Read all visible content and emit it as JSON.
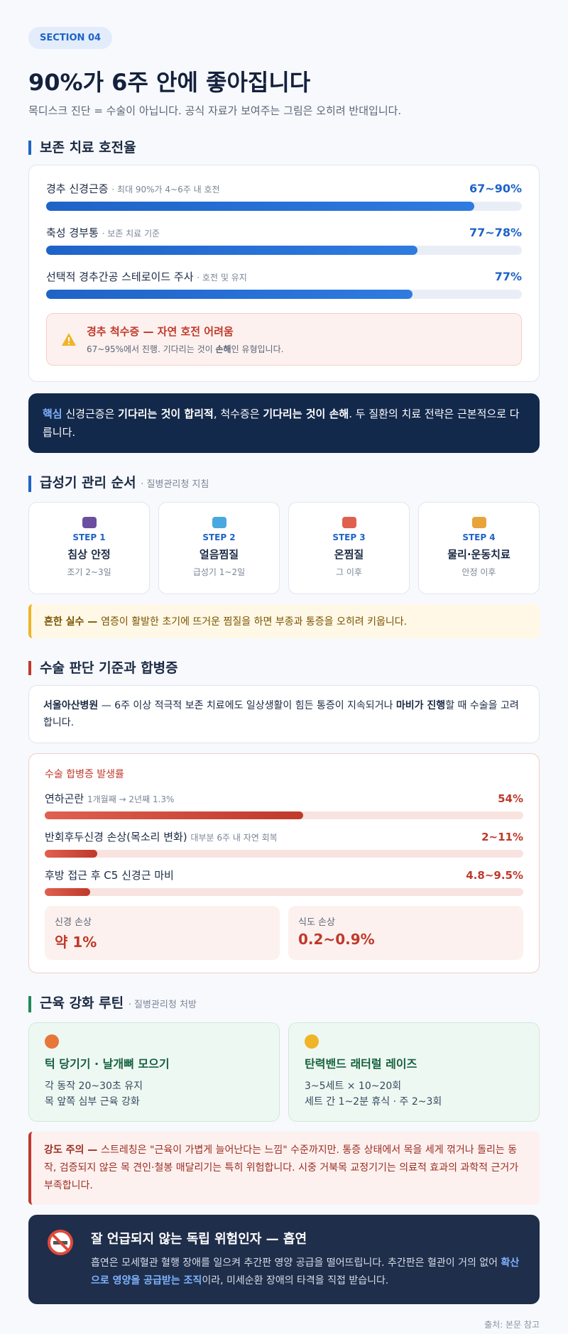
{
  "header": {
    "section_label": "SECTION 04",
    "title": "90%가 6주 안에 좋아집니다",
    "subtitle": "목디스크 진단 = 수술이 아닙니다. 공식 자료가 보여주는 그림은 오히려 반대입니다."
  },
  "conservative": {
    "heading": "보존 치료 호전율",
    "items": [
      {
        "name": "경추 신경근증",
        "note": "· 최대 90%가 4~6주 내 호전",
        "label": "67~90%",
        "value": 90
      },
      {
        "name": "축성 경부통",
        "note": "· 보존 치료 기준",
        "label": "77~78%",
        "value": 78
      },
      {
        "name": "선택적 경추간공 스테로이드 주사",
        "note": "· 호전 및 유지",
        "label": "77%",
        "value": 77
      }
    ],
    "warning": {
      "title": "경추 척수증 — 자연 호전 어려움",
      "parts": [
        "67~95%에서 진행. 기다리는 것이 ",
        "손해",
        "인 유형입니다."
      ]
    }
  },
  "key": {
    "parts": [
      "핵심",
      " 신경근증은 ",
      "기다리는 것이 합리적",
      ", 척수증은 ",
      "기다리는 것이 손해",
      ". 두 질환의 치료 전략은 근본적으로 다릅니다."
    ]
  },
  "acute": {
    "heading": "급성기 관리 순서",
    "note": "· 질병관리청 지침",
    "steps": [
      {
        "step": "STEP 1",
        "name": "침상 안정",
        "desc": "조기 2~3일"
      },
      {
        "step": "STEP 2",
        "name": "얼음찜질",
        "desc": "급성기 1~2일"
      },
      {
        "step": "STEP 3",
        "name": "온찜질",
        "desc": "그 이후"
      },
      {
        "step": "STEP 4",
        "name": "물리·운동치료",
        "desc": "안정 이후"
      }
    ],
    "tip": {
      "parts": [
        "흔한 실수 — ",
        "염증이 활발한 초기에 뜨거운 찜질을 하면 부종과 통증을 오히려 키웁니다."
      ]
    }
  },
  "surgery": {
    "heading": "수술 판단 기준과 합병증",
    "criteria": {
      "parts": [
        "서울아산병원",
        " — 6주 이상 적극적 보존 치료에도 일상생활이 힘든 통증이 지속되거나 ",
        "마비가 진행",
        "할 때 수술을 고려합니다."
      ]
    },
    "complications": {
      "title": "수술 합병증 발생률",
      "items": [
        {
          "name": "연하곤란",
          "note": "1개월째 → 2년째 1.3%",
          "label": "54%",
          "value": 54
        },
        {
          "name": "반회후두신경 손상(목소리 변화)",
          "note": "대부분 6주 내 자연 회복",
          "label": "2~11%",
          "value": 11
        },
        {
          "name": "후방 접근 후 C5 신경근 마비",
          "label": "4.8~9.5%",
          "value": 9.5
        }
      ],
      "stats": [
        {
          "label": "신경 손상",
          "value": "약 1%"
        },
        {
          "label": "식도 손상",
          "value": "0.2~0.9%"
        }
      ]
    }
  },
  "muscle": {
    "heading": "근육 강화 루틴",
    "note": "· 질병관리청 처방",
    "cards": [
      {
        "title": "턱 당기기 · 날개뼈 모으기",
        "lines": [
          "각 동작 20~30초 유지",
          "목 앞쪽 심부 근육 강화"
        ]
      },
      {
        "title": "탄력밴드 래터럴 레이즈",
        "lines": [
          "3~5세트 × 10~20회",
          "세트 간 1~2분 휴식 · 주 2~3회"
        ]
      }
    ],
    "caution": {
      "parts": [
        "강도 주의 — ",
        "스트레칭은 \"근육이 가볍게 늘어난다는 느낌\" 수준까지만. 통증 상태에서 목을 세게 꺾거나 돌리는 동작, 검증되지 않은 목 견인·철봉 매달리기는 특히 위험합니다. 시중 거북목 교정기기는 의료적 효과의 과학적 근거가 부족합니다."
      ]
    }
  },
  "smoking": {
    "title": "잘 언급되지 않는 독립 위험인자 — 흡연",
    "parts": [
      "흡연은 모세혈관 혈행 장애를 일으켜 추간판 영양 공급을 떨어뜨립니다. 추간판은 혈관이 거의 없어 ",
      "확산으로 영양을 공급받는 조직",
      "이라, 미세순환 장애의 타격을 직접 받습니다."
    ]
  },
  "source": "출처: 본문 참고"
}
